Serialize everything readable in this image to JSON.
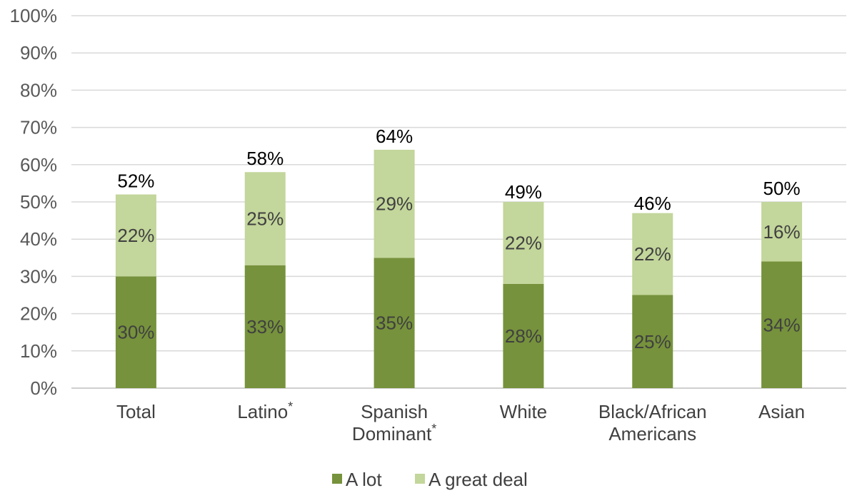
{
  "chart_data": {
    "type": "bar",
    "stacked": true,
    "categories": [
      [
        "Total"
      ],
      [
        "Latino*"
      ],
      [
        "Spanish",
        "Dominant*"
      ],
      [
        "White"
      ],
      [
        "Black/African",
        "Americans"
      ],
      [
        "Asian"
      ]
    ],
    "series": [
      {
        "name": "A lot",
        "color": "#76923c",
        "values": [
          30,
          33,
          35,
          28,
          25,
          34
        ],
        "labels": [
          "30%",
          "33%",
          "35%",
          "28%",
          "25%",
          "34%"
        ]
      },
      {
        "name": "A great deal",
        "color": "#c3d69b",
        "values": [
          22,
          25,
          29,
          22,
          22,
          16
        ],
        "labels": [
          "22%",
          "25%",
          "29%",
          "22%",
          "22%",
          "16%"
        ]
      }
    ],
    "totals": [
      52,
      58,
      64,
      49,
      46,
      50
    ],
    "total_labels": [
      "52%",
      "58%",
      "64%",
      "49%",
      "46%",
      "50%"
    ],
    "y_ticks": [
      "0%",
      "10%",
      "20%",
      "30%",
      "40%",
      "50%",
      "60%",
      "70%",
      "80%",
      "90%",
      "100%"
    ],
    "ylim": [
      0,
      100
    ],
    "grid": true,
    "legend_position": "bottom",
    "colors": {
      "grid": "#d9d9d9",
      "axis": "#bfbfbf"
    }
  }
}
